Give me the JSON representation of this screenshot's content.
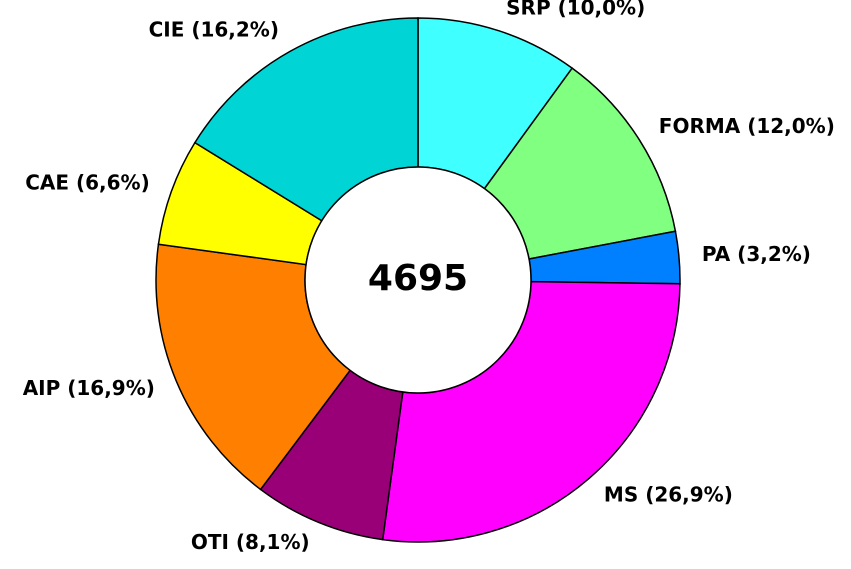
{
  "chart_data": {
    "type": "donut",
    "values": [
      10.0,
      12.0,
      3.2,
      26.9,
      8.1,
      16.9,
      6.6,
      16.2
    ],
    "value_labels": [
      "SRP (10,0%)",
      "FORMA (12,0%)",
      "PA (3,2%)",
      "MS (26,9%)",
      "OTI (8,1%)",
      "AIP (16,9%)",
      "CAE (6,6%)",
      "CIE (16,2%)"
    ],
    "colors": [
      "#40ffff",
      "#80ff80",
      "#0080ff",
      "#ff00ff",
      "#990077",
      "#ff8000",
      "#ffff00",
      "#00d4d4"
    ],
    "center_text": "4695"
  }
}
